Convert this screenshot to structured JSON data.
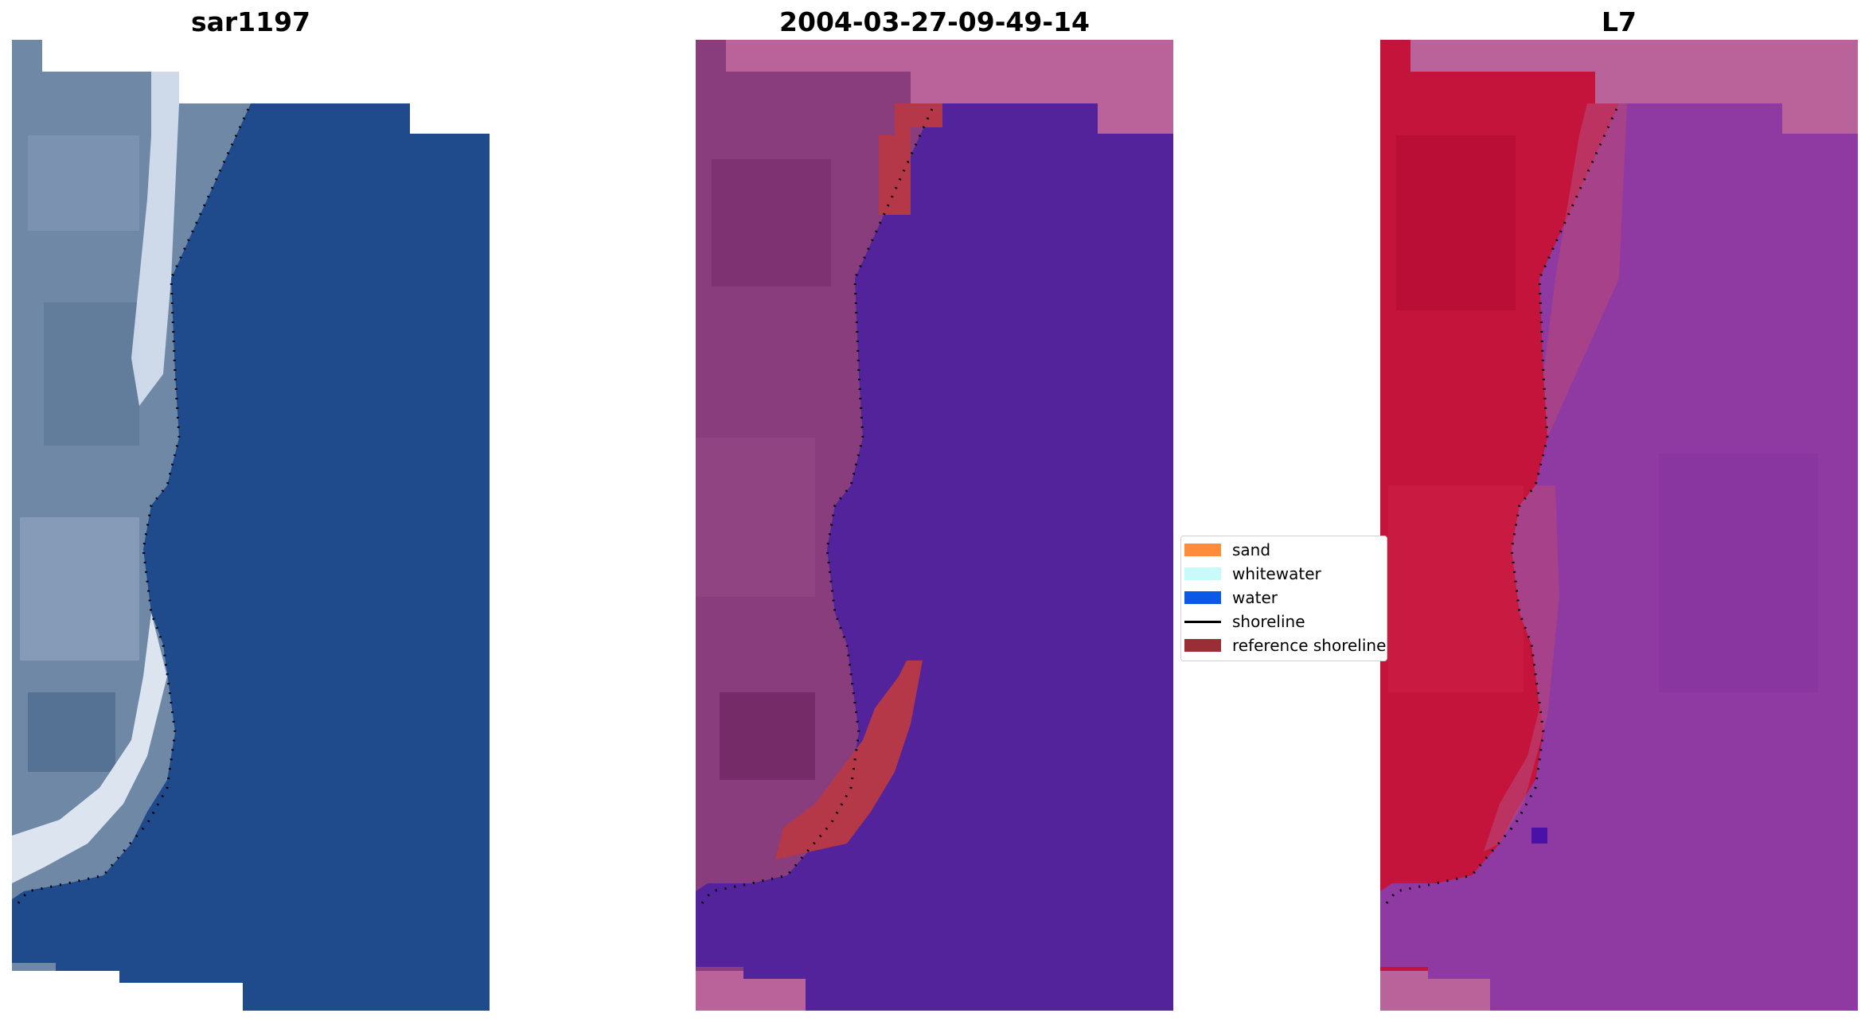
{
  "panels": [
    {
      "title": "sar1197"
    },
    {
      "title": "2004-03-27-09-49-14"
    },
    {
      "title": "L7"
    }
  ],
  "legend": {
    "items": [
      {
        "label": "sand",
        "color": "#ff8c3a"
      },
      {
        "label": "whitewater",
        "color": "#c8fafa"
      },
      {
        "label": "water",
        "color": "#0a5ae6"
      },
      {
        "label": "shoreline",
        "color": "#000000"
      },
      {
        "label": "reference shoreline",
        "color": "#9a2e36"
      }
    ]
  },
  "colors": {
    "rgb_water": "#1f4a8c",
    "rgb_land": "#6e88a8",
    "rgb_surf": "#e8eef8",
    "class_water": "#52239a",
    "class_land": "#8a3d7c",
    "class_nodata": "#b9639a",
    "class_reference": "#b43848",
    "index_land": "#c4143c",
    "index_water": "#8e3aa2",
    "index_nodata": "#b9639a",
    "shoreline": "#000000"
  }
}
